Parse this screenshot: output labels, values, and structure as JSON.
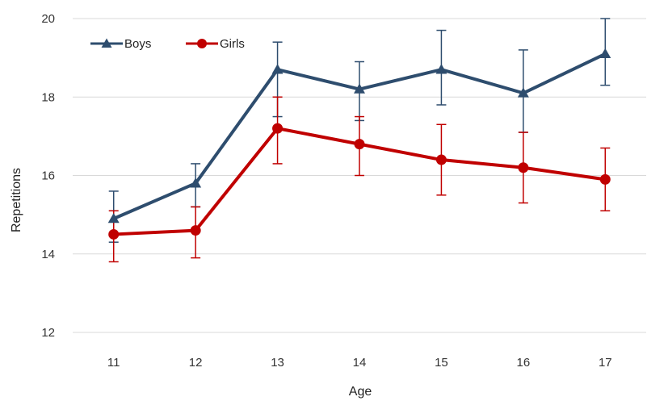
{
  "chart_data": {
    "type": "line",
    "title": "",
    "xlabel": "Age",
    "ylabel": "Repetitions",
    "categories": [
      "11",
      "12",
      "13",
      "14",
      "15",
      "16",
      "17"
    ],
    "ylim": [
      12,
      20
    ],
    "yticks": [
      "12",
      "14",
      "16",
      "18",
      "20"
    ],
    "grid": "horizontal",
    "legend_position": "top-left",
    "series": [
      {
        "name": "Boys",
        "color": "#2e4d6e",
        "marker": "triangle",
        "values": [
          14.9,
          15.8,
          18.7,
          18.2,
          18.7,
          18.1,
          19.1
        ],
        "error_low": [
          14.3,
          15.2,
          17.5,
          17.4,
          17.8,
          17.1,
          18.3
        ],
        "error_high": [
          15.6,
          16.3,
          19.4,
          18.9,
          19.7,
          19.2,
          20.0
        ]
      },
      {
        "name": "Girls",
        "color": "#c00000",
        "marker": "circle",
        "values": [
          14.5,
          14.6,
          17.2,
          16.8,
          16.4,
          16.2,
          15.9
        ],
        "error_low": [
          13.8,
          13.9,
          16.3,
          16.0,
          15.5,
          15.3,
          15.1
        ],
        "error_high": [
          15.1,
          15.2,
          18.0,
          17.5,
          17.3,
          17.1,
          16.7
        ]
      }
    ]
  }
}
